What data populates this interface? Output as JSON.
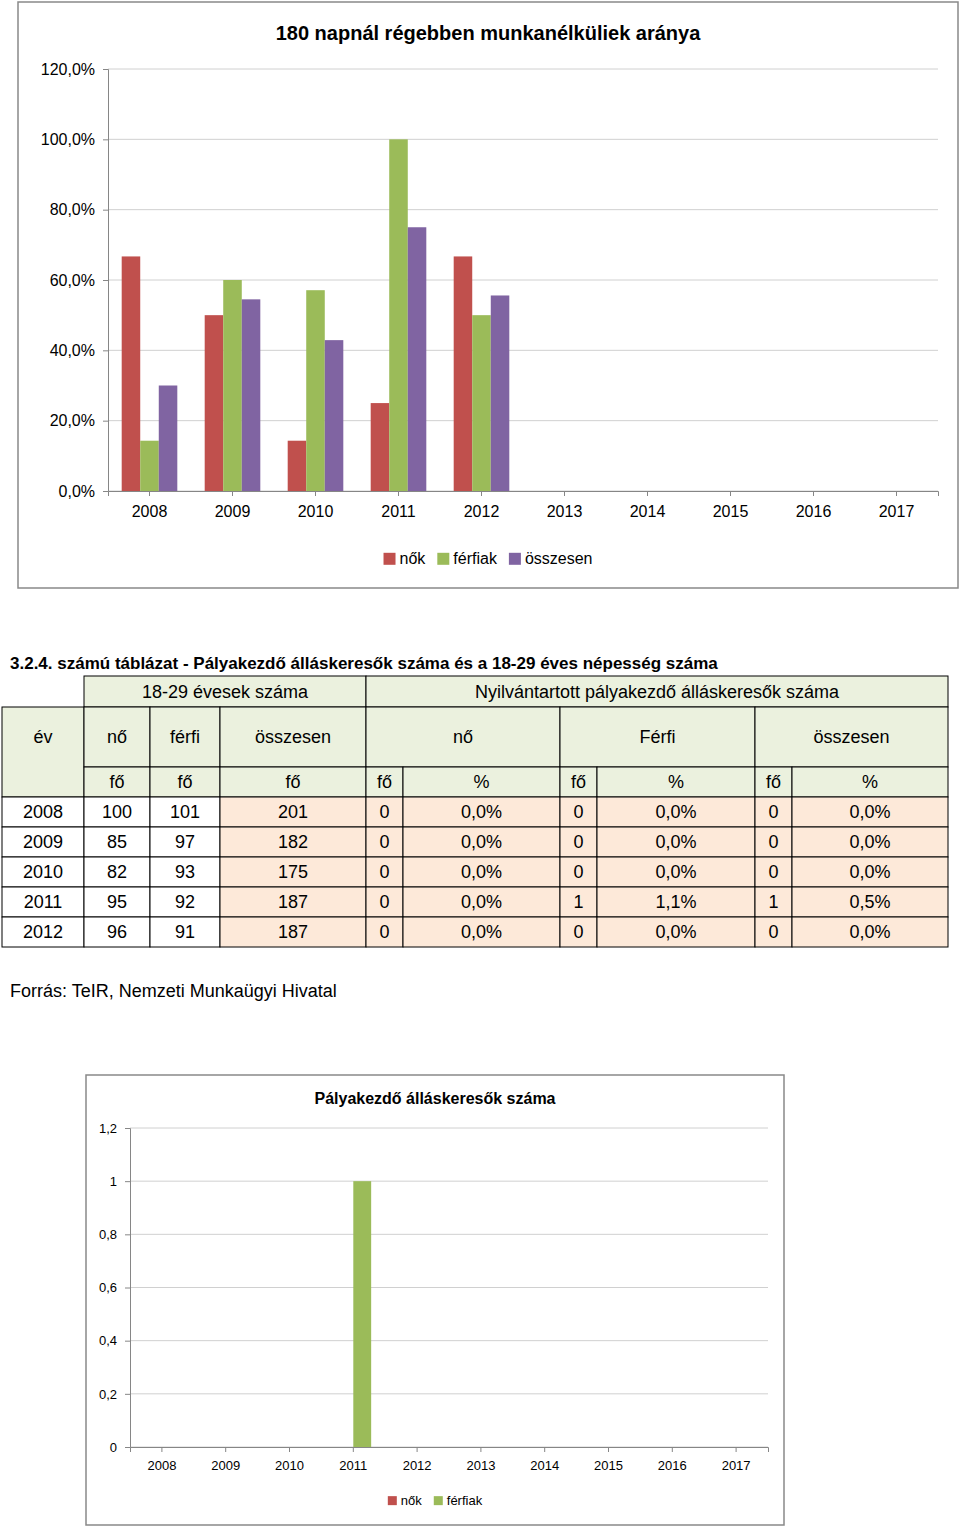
{
  "chart_data": [
    {
      "type": "bar",
      "title": "180 napnál régebben munkanélküliek aránya",
      "categories": [
        "2008",
        "2009",
        "2010",
        "2011",
        "2012",
        "2013",
        "2014",
        "2015",
        "2016",
        "2017"
      ],
      "series": [
        {
          "name": "nők",
          "color": "#c0504d",
          "values": [
            66.7,
            50,
            14.3,
            25,
            66.7,
            null,
            null,
            null,
            null,
            null
          ]
        },
        {
          "name": "férfiak",
          "color": "#9bbb59",
          "values": [
            14.3,
            60,
            57.1,
            100,
            50,
            null,
            null,
            null,
            null,
            null
          ]
        },
        {
          "name": "összesen",
          "color": "#8064a2",
          "values": [
            30,
            54.5,
            42.9,
            75,
            55.6,
            null,
            null,
            null,
            null,
            null
          ]
        }
      ],
      "ylim": [
        0,
        120
      ],
      "yticks": [
        {
          "value": 0,
          "label": "0,0%"
        },
        {
          "value": 20,
          "label": "20,0%"
        },
        {
          "value": 40,
          "label": "40,0%"
        },
        {
          "value": 60,
          "label": "60,0%"
        },
        {
          "value": 80,
          "label": "80,0%"
        },
        {
          "value": 100,
          "label": "100,0%"
        },
        {
          "value": 120,
          "label": "120,0%"
        }
      ],
      "grid": true,
      "legend": "bottom"
    },
    {
      "type": "bar",
      "title": "Pályakezdő álláskeresők száma",
      "categories": [
        "2008",
        "2009",
        "2010",
        "2011",
        "2012",
        "2013",
        "2014",
        "2015",
        "2016",
        "2017"
      ],
      "series": [
        {
          "name": "nők",
          "color": "#c0504d",
          "values": [
            0,
            0,
            0,
            0,
            0,
            null,
            null,
            null,
            null,
            null
          ]
        },
        {
          "name": "férfiak",
          "color": "#9bbb59",
          "values": [
            0,
            0,
            0,
            1,
            0,
            null,
            null,
            null,
            null,
            null
          ]
        }
      ],
      "ylim": [
        0,
        1.2
      ],
      "yticks": [
        0,
        {
          "value": 0.2,
          "label": "0,2"
        },
        {
          "value": 0.4,
          "label": "0,4"
        },
        {
          "value": 0.6,
          "label": "0,6"
        },
        {
          "value": 0.8,
          "label": "0,8"
        },
        1,
        {
          "value": 1.2,
          "label": "1,2"
        }
      ],
      "grid": true,
      "legend": "bottom"
    }
  ],
  "table": {
    "caption": "3.2.4. számú táblázat - Pályakezdő álláskeresők száma és a 18-29 éves népesség száma",
    "header": [
      [
        "18-29 évesek száma",
        "Nyilvántartott pályakezdő álláskeresők száma"
      ],
      [
        "év",
        "nő",
        "férfi",
        "összesen",
        "nő",
        "Férfi",
        "összesen"
      ],
      [
        "fő",
        "fő",
        "fő",
        "fő",
        "%",
        "fő",
        "%",
        "fő",
        "%"
      ]
    ],
    "rows": [
      [
        2008,
        100,
        101,
        201,
        0,
        "0,0%",
        0,
        "0,0%",
        0,
        "0,0%"
      ],
      [
        2009,
        85,
        97,
        182,
        0,
        "0,0%",
        0,
        "0,0%",
        0,
        "0,0%"
      ],
      [
        2010,
        82,
        93,
        175,
        0,
        "0,0%",
        0,
        "0,0%",
        0,
        "0,0%"
      ],
      [
        2011,
        95,
        92,
        187,
        0,
        "0,0%",
        1,
        "1,1%",
        1,
        "0,5%"
      ],
      [
        2012,
        96,
        91,
        187,
        0,
        "0,0%",
        0,
        "0,0%",
        0,
        "0,0%"
      ]
    ],
    "source": "Forrás: TeIR, Nemzeti Munkaügyi Hivatal"
  }
}
